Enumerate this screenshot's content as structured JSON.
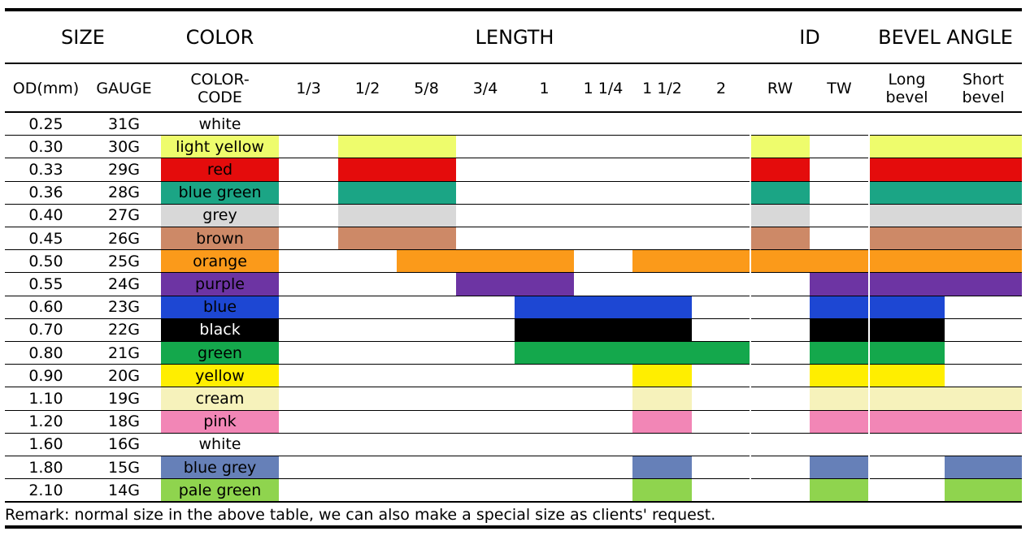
{
  "group_headers": [
    "SIZE",
    "COLOR",
    "LENGTH",
    "ID",
    "BEVEL ANGLE"
  ],
  "column_headers": [
    "OD(mm)",
    "GAUGE",
    "COLOR-\nCODE",
    "1/3",
    "1/2",
    "5/8",
    "3/4",
    "1",
    "1 1/4",
    "1 1/2",
    "2",
    "RW",
    "TW",
    "Long\nbevel",
    "Short\nbevel"
  ],
  "rows": [
    {
      "od": "0.25",
      "gauge": "31G",
      "color_name": "white",
      "color": "#ffffff",
      "text_color": "#000000",
      "length": [],
      "id": [],
      "bevel": []
    },
    {
      "od": "0.30",
      "gauge": "30G",
      "color_name": "light yellow",
      "color": "#eefc6c",
      "text_color": "#000000",
      "length": [
        "1/2",
        "5/8"
      ],
      "id": [
        "RW"
      ],
      "bevel": [
        "Long bevel",
        "Short bevel"
      ]
    },
    {
      "od": "0.33",
      "gauge": "29G",
      "color_name": "red",
      "color": "#e40c0c",
      "text_color": "#000000",
      "length": [
        "1/2",
        "5/8"
      ],
      "id": [
        "RW"
      ],
      "bevel": [
        "Long bevel",
        "Short bevel"
      ]
    },
    {
      "od": "0.36",
      "gauge": "28G",
      "color_name": "blue green",
      "color": "#1ba585",
      "text_color": "#000000",
      "length": [
        "1/2",
        "5/8"
      ],
      "id": [
        "RW"
      ],
      "bevel": [
        "Long bevel",
        "Short bevel"
      ]
    },
    {
      "od": "0.40",
      "gauge": "27G",
      "color_name": "grey",
      "color": "#d8d8d8",
      "text_color": "#000000",
      "length": [
        "1/2",
        "5/8"
      ],
      "id": [
        "RW"
      ],
      "bevel": [
        "Long bevel",
        "Short bevel"
      ]
    },
    {
      "od": "0.45",
      "gauge": "26G",
      "color_name": "brown",
      "color": "#cd8967",
      "text_color": "#000000",
      "length": [
        "1/2",
        "5/8"
      ],
      "id": [
        "RW"
      ],
      "bevel": [
        "Long bevel",
        "Short bevel"
      ]
    },
    {
      "od": "0.50",
      "gauge": "25G",
      "color_name": "orange",
      "color": "#fb9a1a",
      "text_color": "#000000",
      "length": [
        "5/8",
        "3/4",
        "1",
        "1 1/2",
        "2"
      ],
      "id": [
        "RW",
        "TW"
      ],
      "bevel": [
        "Long bevel",
        "Short bevel"
      ]
    },
    {
      "od": "0.55",
      "gauge": "24G",
      "color_name": "purple",
      "color": "#6d34a3",
      "text_color": "#000000",
      "length": [
        "3/4",
        "1"
      ],
      "id": [
        "TW"
      ],
      "bevel": [
        "Long bevel",
        "Short bevel"
      ]
    },
    {
      "od": "0.60",
      "gauge": "23G",
      "color_name": "blue",
      "color": "#1d47d3",
      "text_color": "#000000",
      "length": [
        "1",
        "1 1/4",
        "1 1/2"
      ],
      "id": [
        "TW"
      ],
      "bevel": [
        "Long bevel"
      ]
    },
    {
      "od": "0.70",
      "gauge": "22G",
      "color_name": "black",
      "color": "#000000",
      "text_color": "#ffffff",
      "length": [
        "1",
        "1 1/4",
        "1 1/2"
      ],
      "id": [
        "TW"
      ],
      "bevel": [
        "Long bevel"
      ]
    },
    {
      "od": "0.80",
      "gauge": "21G",
      "color_name": "green",
      "color": "#14a84c",
      "text_color": "#000000",
      "length": [
        "1",
        "1 1/4",
        "1 1/2",
        "2"
      ],
      "id": [
        "TW"
      ],
      "bevel": [
        "Long bevel"
      ]
    },
    {
      "od": "0.90",
      "gauge": "20G",
      "color_name": "yellow",
      "color": "#ffee00",
      "text_color": "#000000",
      "length": [
        "1 1/2"
      ],
      "id": [
        "TW"
      ],
      "bevel": [
        "Long bevel"
      ]
    },
    {
      "od": "1.10",
      "gauge": "19G",
      "color_name": "cream",
      "color": "#f6f2bb",
      "text_color": "#000000",
      "length": [
        "1 1/2"
      ],
      "id": [
        "TW"
      ],
      "bevel": [
        "Long bevel",
        "Short bevel"
      ]
    },
    {
      "od": "1.20",
      "gauge": "18G",
      "color_name": "pink",
      "color": "#f286b6",
      "text_color": "#000000",
      "length": [
        "1 1/2"
      ],
      "id": [
        "TW"
      ],
      "bevel": [
        "Long bevel",
        "Short bevel"
      ]
    },
    {
      "od": "1.60",
      "gauge": "16G",
      "color_name": "white",
      "color": "#ffffff",
      "text_color": "#000000",
      "length": [],
      "id": [],
      "bevel": []
    },
    {
      "od": "1.80",
      "gauge": "15G",
      "color_name": "blue grey",
      "color": "#6680b8",
      "text_color": "#000000",
      "length": [
        "1 1/2"
      ],
      "id": [
        "TW"
      ],
      "bevel": [
        "Short bevel"
      ]
    },
    {
      "od": "2.10",
      "gauge": "14G",
      "color_name": "pale green",
      "color": "#8fd44e",
      "text_color": "#000000",
      "length": [
        "1 1/2"
      ],
      "id": [
        "TW"
      ],
      "bevel": [
        "Short bevel"
      ]
    }
  ],
  "remark": "Remark: normal size in the above table, we can also make a special size as clients' request."
}
